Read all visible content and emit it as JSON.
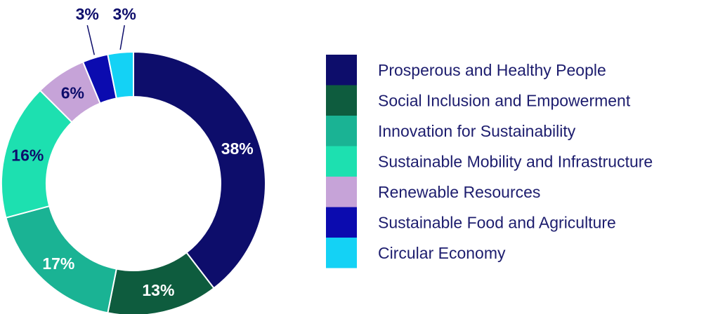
{
  "chart_data": {
    "type": "pie",
    "donut": true,
    "categories": [
      "Prosperous and Healthy People",
      "Social Inclusion and Empowerment",
      "Innovation for Sustainability",
      "Sustainable Mobility and Infrastructure",
      "Renewable Resources",
      "Sustainable Food and Agriculture",
      "Circular Economy"
    ],
    "values": [
      38,
      13,
      17,
      16,
      6,
      3,
      3
    ],
    "labels": [
      "38%",
      "13%",
      "17%",
      "16%",
      "6%",
      "3%",
      "3%"
    ],
    "colors": [
      "#0d0d6b",
      "#0e5c3e",
      "#1ab394",
      "#1de0b0",
      "#c6a3d8",
      "#0b0baf",
      "#14d2f5"
    ],
    "label_colors": [
      "#ffffff",
      "#ffffff",
      "#ffffff",
      "#0d0d6b",
      "#0d0d6b",
      "#0d0d6b",
      "#0d0d6b"
    ],
    "start_angle_deg": 0,
    "direction": "clockwise",
    "legend_position": "right",
    "title": ""
  }
}
